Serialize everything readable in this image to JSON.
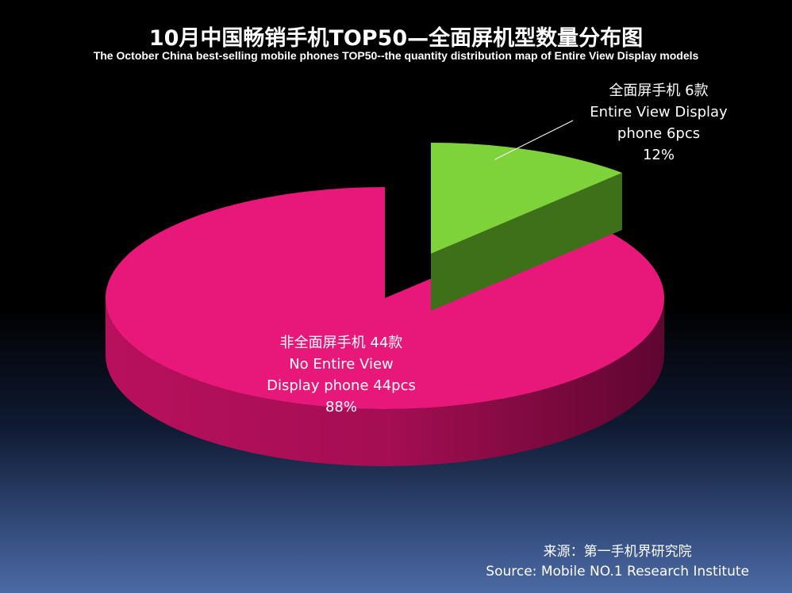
{
  "chart_data": {
    "type": "pie",
    "title": "10月中国畅销手机TOP50—全面屏机型数量分布图",
    "subtitle": "The October China best-selling mobile phones  TOP50--the quantity distribution map of Entire View Display models",
    "slices": [
      {
        "label_cn": "全面屏手机 6款",
        "label_en_1": "Entire View Display",
        "label_en_2": "phone 6pcs",
        "value": 6,
        "percent": "12%",
        "color": "#7ed33b",
        "exploded": true
      },
      {
        "label_cn": "非全面屏手机  44款",
        "label_en_1": "No Entire View",
        "label_en_2": "Display phone 44pcs",
        "value": 44,
        "percent": "88%",
        "color": "#e8177a",
        "exploded": false
      }
    ],
    "style": "3d"
  },
  "source": {
    "cn": "来源：第一手机界研究院",
    "en": "Source: Mobile NO.1 Research Institute"
  }
}
